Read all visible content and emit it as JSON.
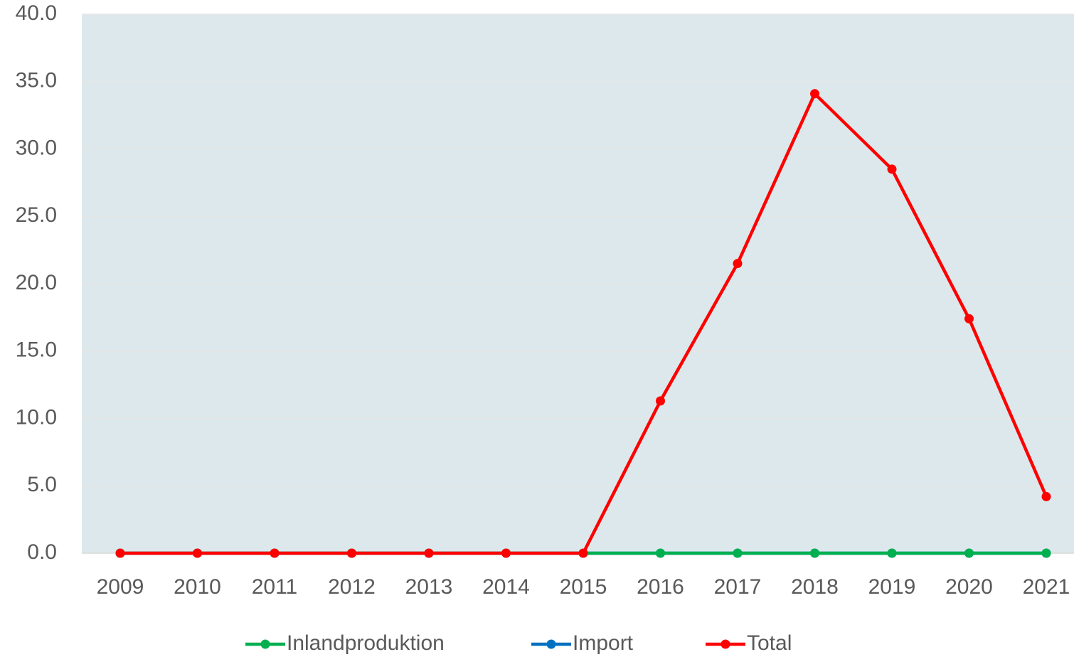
{
  "chart_data": {
    "type": "line",
    "categories": [
      "2009",
      "2010",
      "2011",
      "2012",
      "2013",
      "2014",
      "2015",
      "2016",
      "2017",
      "2018",
      "2019",
      "2020",
      "2021"
    ],
    "series": [
      {
        "name": "Inlandproduktion",
        "color": "#00b050",
        "values": [
          0,
          0,
          0,
          0,
          0,
          0,
          0,
          0,
          0,
          0,
          0,
          0,
          0
        ]
      },
      {
        "name": "Import",
        "color": "#0070c0",
        "values": [
          0,
          0,
          0,
          0,
          0,
          0,
          0,
          0,
          0,
          0,
          0,
          0,
          0
        ]
      },
      {
        "name": "Total",
        "color": "#ff0000",
        "values": [
          0,
          0,
          0,
          0,
          0,
          0,
          0,
          11.3,
          21.5,
          34.1,
          28.5,
          17.4,
          4.2
        ]
      }
    ],
    "ylim": [
      0,
      40
    ],
    "yticks": [
      {
        "value": 0,
        "label": "0.0"
      },
      {
        "value": 5,
        "label": "5.0"
      },
      {
        "value": 10,
        "label": "10.0"
      },
      {
        "value": 15,
        "label": "15.0"
      },
      {
        "value": 20,
        "label": "20.0"
      },
      {
        "value": 25,
        "label": "25.0"
      },
      {
        "value": 30,
        "label": "30.0"
      },
      {
        "value": 35,
        "label": "35.0"
      },
      {
        "value": 40,
        "label": "40.0"
      }
    ],
    "grid": true,
    "legend": "bottom"
  }
}
